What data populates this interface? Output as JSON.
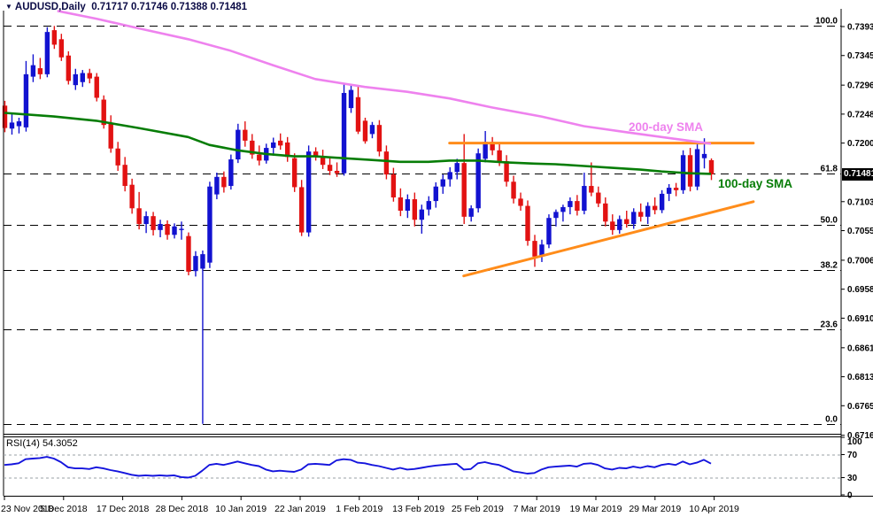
{
  "header": {
    "dropdown_arrow": "▼",
    "symbol": "AUDUSD,Daily",
    "values": "0.71717 0.71746 0.71388 0.71481"
  },
  "price_tag": "0.71481",
  "annotations": {
    "sma200_label": "200-day SMA",
    "sma100_label": "100-day SMA"
  },
  "rsi_panel": {
    "title": "RSI(14) 54.3052",
    "axis_labels": [
      "100",
      "70",
      "30",
      "0"
    ],
    "axis_values": [
      100,
      70,
      30,
      0
    ],
    "level_lines": [
      70,
      30
    ]
  },
  "colors": {
    "bull": "#1212d0",
    "bear": "#e21212",
    "sma100": "#077d07",
    "sma200": "#ee82ee",
    "trendline": "#ff8c1a",
    "rsi_line": "#1414dd",
    "rsi_level": "#9aa0a6",
    "fib": "#000000",
    "axis_text": "#000000",
    "tag_bg": "#000000",
    "tag_fg": "#ffffff",
    "frame": "#000000"
  },
  "chart_data": {
    "type": "candlestick",
    "symbol": "AUDUSD",
    "timeframe": "Daily",
    "last_ohlc": {
      "open": 0.71717,
      "high": 0.71746,
      "low": 0.71388,
      "close": 0.71481
    },
    "current_price": 0.71481,
    "dates": [
      "23 Nov 2018",
      "5 Dec 2018",
      "17 Dec 2018",
      "28 Dec 2018",
      "10 Jan 2019",
      "22 Jan 2019",
      "1 Feb 2019",
      "13 Feb 2019",
      "25 Feb 2019",
      "7 Mar 2019",
      "19 Mar 2019",
      "29 Mar 2019",
      "10 Apr 2019"
    ],
    "price_axis": [
      {
        "label": "0.73930",
        "value": 0.7393
      },
      {
        "label": "0.73450",
        "value": 0.7345
      },
      {
        "label": "0.72960",
        "value": 0.7296
      },
      {
        "label": "0.72480",
        "value": 0.7248
      },
      {
        "label": "0.72000",
        "value": 0.72
      },
      {
        "label": "0.71030",
        "value": 0.7103
      },
      {
        "label": "0.70550",
        "value": 0.7055
      },
      {
        "label": "0.70060",
        "value": 0.7006
      },
      {
        "label": "0.69580",
        "value": 0.6958
      },
      {
        "label": "0.69100",
        "value": 0.691
      },
      {
        "label": "0.68610",
        "value": 0.6861
      },
      {
        "label": "0.68130",
        "value": 0.6813
      },
      {
        "label": "0.67650",
        "value": 0.6765
      },
      {
        "label": "0.67160",
        "value": 0.6716
      }
    ],
    "fib_levels": [
      {
        "label": "100.0",
        "price": 0.7394
      },
      {
        "label": "61.8",
        "price": 0.7149
      },
      {
        "label": "50.0",
        "price": 0.7065
      },
      {
        "label": "38.2",
        "price": 0.699
      },
      {
        "label": "23.6",
        "price": 0.6892
      },
      {
        "label": "0.0",
        "price": 0.6735
      }
    ],
    "trendlines": [
      {
        "name": "horizontal-resistance",
        "points": [
          [
            63,
            0.72
          ],
          [
            106,
            0.72
          ]
        ]
      },
      {
        "name": "ascending-support",
        "points": [
          [
            65,
            0.698
          ],
          [
            106,
            0.7103
          ]
        ]
      }
    ],
    "sma100": [
      [
        0,
        0.725
      ],
      [
        7,
        0.7244
      ],
      [
        13,
        0.7237
      ],
      [
        19,
        0.7225
      ],
      [
        26,
        0.721
      ],
      [
        29,
        0.7197
      ],
      [
        33,
        0.7188
      ],
      [
        37,
        0.7182
      ],
      [
        41,
        0.7178
      ],
      [
        44,
        0.7178
      ],
      [
        48,
        0.7175
      ],
      [
        52,
        0.7172
      ],
      [
        56,
        0.7169
      ],
      [
        60,
        0.7169
      ],
      [
        63,
        0.7171
      ],
      [
        67,
        0.7171
      ],
      [
        71,
        0.7168
      ],
      [
        75,
        0.7166
      ],
      [
        78,
        0.7165
      ],
      [
        82,
        0.7162
      ],
      [
        86,
        0.7159
      ],
      [
        90,
        0.7156
      ],
      [
        93,
        0.7153
      ],
      [
        97,
        0.715
      ],
      [
        100,
        0.7149
      ]
    ],
    "sma200": [
      [
        7.5,
        0.7419
      ],
      [
        13,
        0.7406
      ],
      [
        19,
        0.739
      ],
      [
        26,
        0.7372
      ],
      [
        32,
        0.7353
      ],
      [
        38,
        0.7329
      ],
      [
        44,
        0.7306
      ],
      [
        51,
        0.7293
      ],
      [
        57,
        0.7285
      ],
      [
        63,
        0.7274
      ],
      [
        69,
        0.7259
      ],
      [
        76,
        0.7244
      ],
      [
        82,
        0.7228
      ],
      [
        88,
        0.7218
      ],
      [
        95,
        0.7207
      ],
      [
        100,
        0.7199
      ]
    ],
    "candles": [
      [
        0.7262,
        0.727,
        0.7218,
        0.7225
      ],
      [
        0.7224,
        0.7248,
        0.7214,
        0.7234
      ],
      [
        0.7228,
        0.7242,
        0.7216,
        0.7236
      ],
      [
        0.7226,
        0.7336,
        0.7219,
        0.7314
      ],
      [
        0.731,
        0.7347,
        0.7301,
        0.7329
      ],
      [
        0.7324,
        0.7341,
        0.7306,
        0.7314
      ],
      [
        0.7314,
        0.7392,
        0.7309,
        0.7384
      ],
      [
        0.7387,
        0.7394,
        0.7356,
        0.7363
      ],
      [
        0.7372,
        0.7381,
        0.7336,
        0.7342
      ],
      [
        0.7345,
        0.7352,
        0.7297,
        0.7303
      ],
      [
        0.7296,
        0.7323,
        0.7288,
        0.7314
      ],
      [
        0.7301,
        0.7321,
        0.7293,
        0.7316
      ],
      [
        0.7316,
        0.7323,
        0.7299,
        0.7307
      ],
      [
        0.731,
        0.7316,
        0.7269,
        0.7275
      ],
      [
        0.7272,
        0.7279,
        0.7224,
        0.723
      ],
      [
        0.7232,
        0.7246,
        0.7184,
        0.7191
      ],
      [
        0.7191,
        0.7202,
        0.7154,
        0.7163
      ],
      [
        0.7164,
        0.7177,
        0.712,
        0.7129
      ],
      [
        0.7131,
        0.7141,
        0.7083,
        0.7092
      ],
      [
        0.7092,
        0.7119,
        0.7057,
        0.7066
      ],
      [
        0.7066,
        0.7087,
        0.7051,
        0.7079
      ],
      [
        0.7079,
        0.7086,
        0.7047,
        0.7056
      ],
      [
        0.7056,
        0.7073,
        0.7044,
        0.7066
      ],
      [
        0.7066,
        0.7072,
        0.704,
        0.7048
      ],
      [
        0.7048,
        0.7067,
        0.7042,
        0.7062
      ],
      [
        0.7056,
        0.707,
        0.704,
        0.7058
      ],
      [
        0.7046,
        0.7052,
        0.6981,
        0.6987
      ],
      [
        0.6988,
        0.7021,
        0.6979,
        0.7013
      ],
      [
        0.6992,
        0.7022,
        0.6735,
        0.7016
      ],
      [
        0.7002,
        0.7136,
        0.6993,
        0.7128
      ],
      [
        0.7115,
        0.7151,
        0.7107,
        0.7144
      ],
      [
        0.7144,
        0.7153,
        0.7118,
        0.7127
      ],
      [
        0.7129,
        0.7181,
        0.7123,
        0.7173
      ],
      [
        0.7173,
        0.7232,
        0.7167,
        0.7222
      ],
      [
        0.7222,
        0.7236,
        0.7194,
        0.7204
      ],
      [
        0.7204,
        0.7215,
        0.7174,
        0.7181
      ],
      [
        0.7181,
        0.7196,
        0.7163,
        0.7171
      ],
      [
        0.7171,
        0.7199,
        0.7166,
        0.7192
      ],
      [
        0.7192,
        0.7209,
        0.7179,
        0.7201
      ],
      [
        0.7204,
        0.7216,
        0.7189,
        0.7196
      ],
      [
        0.7201,
        0.721,
        0.7169,
        0.7177
      ],
      [
        0.7175,
        0.7183,
        0.7119,
        0.7127
      ],
      [
        0.7127,
        0.7139,
        0.7046,
        0.7052
      ],
      [
        0.7052,
        0.7196,
        0.7045,
        0.7186
      ],
      [
        0.7186,
        0.7193,
        0.7171,
        0.7177
      ],
      [
        0.7177,
        0.7189,
        0.7157,
        0.7164
      ],
      [
        0.7164,
        0.7176,
        0.7147,
        0.7154
      ],
      [
        0.7154,
        0.7168,
        0.7144,
        0.715
      ],
      [
        0.715,
        0.7298,
        0.7146,
        0.7283
      ],
      [
        0.7258,
        0.7296,
        0.725,
        0.7288
      ],
      [
        0.7276,
        0.7294,
        0.7215,
        0.7219
      ],
      [
        0.7237,
        0.7242,
        0.7199,
        0.7203
      ],
      [
        0.7215,
        0.7235,
        0.7208,
        0.723
      ],
      [
        0.723,
        0.7238,
        0.7178,
        0.7186
      ],
      [
        0.7186,
        0.7196,
        0.714,
        0.7148
      ],
      [
        0.7148,
        0.7159,
        0.7103,
        0.711
      ],
      [
        0.711,
        0.7125,
        0.7079,
        0.7088
      ],
      [
        0.7088,
        0.7115,
        0.7076,
        0.7107
      ],
      [
        0.7107,
        0.7118,
        0.7062,
        0.7073
      ],
      [
        0.7073,
        0.7098,
        0.705,
        0.709
      ],
      [
        0.709,
        0.7112,
        0.708,
        0.7104
      ],
      [
        0.7104,
        0.7135,
        0.7093,
        0.7128
      ],
      [
        0.7128,
        0.7148,
        0.7116,
        0.714
      ],
      [
        0.714,
        0.716,
        0.7128,
        0.7152
      ],
      [
        0.7152,
        0.7174,
        0.714,
        0.7167
      ],
      [
        0.7167,
        0.7215,
        0.7066,
        0.7078
      ],
      [
        0.7078,
        0.7097,
        0.707,
        0.7092
      ],
      [
        0.7092,
        0.7191,
        0.7085,
        0.7183
      ],
      [
        0.7174,
        0.722,
        0.7168,
        0.7202
      ],
      [
        0.7202,
        0.721,
        0.718,
        0.7188
      ],
      [
        0.7188,
        0.7198,
        0.7162,
        0.717
      ],
      [
        0.717,
        0.718,
        0.7128,
        0.7136
      ],
      [
        0.7136,
        0.7146,
        0.71,
        0.7108
      ],
      [
        0.7108,
        0.7118,
        0.7088,
        0.7096
      ],
      [
        0.7096,
        0.7105,
        0.703,
        0.7038
      ],
      [
        0.7038,
        0.7048,
        0.6995,
        0.7012
      ],
      [
        0.7012,
        0.704,
        0.7003,
        0.7032
      ],
      [
        0.7032,
        0.7082,
        0.7026,
        0.7076
      ],
      [
        0.7076,
        0.709,
        0.7062,
        0.7086
      ],
      [
        0.7086,
        0.7098,
        0.707,
        0.7094
      ],
      [
        0.7094,
        0.711,
        0.7082,
        0.7104
      ],
      [
        0.7104,
        0.7114,
        0.708,
        0.7088
      ],
      [
        0.7088,
        0.7151,
        0.7082,
        0.7129
      ],
      [
        0.7129,
        0.7168,
        0.7112,
        0.7118
      ],
      [
        0.7118,
        0.7128,
        0.7094,
        0.71
      ],
      [
        0.71,
        0.711,
        0.7062,
        0.707
      ],
      [
        0.707,
        0.7082,
        0.7048,
        0.7056
      ],
      [
        0.7056,
        0.708,
        0.705,
        0.7074
      ],
      [
        0.7074,
        0.7088,
        0.706,
        0.7066
      ],
      [
        0.7066,
        0.7092,
        0.7058,
        0.7086
      ],
      [
        0.7086,
        0.71,
        0.707,
        0.7078
      ],
      [
        0.7078,
        0.7102,
        0.7066,
        0.7096
      ],
      [
        0.7096,
        0.711,
        0.7082,
        0.7089
      ],
      [
        0.7089,
        0.7122,
        0.7084,
        0.7116
      ],
      [
        0.7116,
        0.7132,
        0.7104,
        0.7126
      ],
      [
        0.7126,
        0.7134,
        0.7112,
        0.7122
      ],
      [
        0.7122,
        0.7188,
        0.7116,
        0.718
      ],
      [
        0.718,
        0.7192,
        0.712,
        0.7128
      ],
      [
        0.7128,
        0.7202,
        0.7122,
        0.719
      ],
      [
        0.7175,
        0.7208,
        0.7158,
        0.7182
      ],
      [
        0.71717,
        0.71746,
        0.71388,
        0.71481
      ]
    ],
    "rsi": {
      "period": 14,
      "value": 54.3052,
      "values": [
        52,
        53,
        55,
        62,
        63,
        64,
        66,
        63,
        57,
        48,
        46,
        46,
        45,
        48,
        46,
        43,
        41,
        38,
        35,
        33,
        34,
        33,
        34,
        33,
        34,
        31,
        30,
        33,
        42,
        52,
        54,
        52,
        55,
        58,
        55,
        52,
        50,
        44,
        41,
        42,
        41,
        40,
        44,
        53,
        54,
        53,
        52,
        60,
        62,
        61,
        56,
        55,
        52,
        50,
        47,
        44,
        47,
        44,
        45,
        47,
        49,
        51,
        52,
        53,
        54,
        44,
        45,
        55,
        57,
        54,
        52,
        47,
        41,
        39,
        37,
        38,
        44,
        48,
        49,
        50,
        51,
        49,
        54,
        55,
        52,
        46,
        44,
        47,
        46,
        49,
        47,
        50,
        48,
        52,
        54,
        52,
        58,
        53,
        56,
        61,
        54.3
      ]
    }
  }
}
